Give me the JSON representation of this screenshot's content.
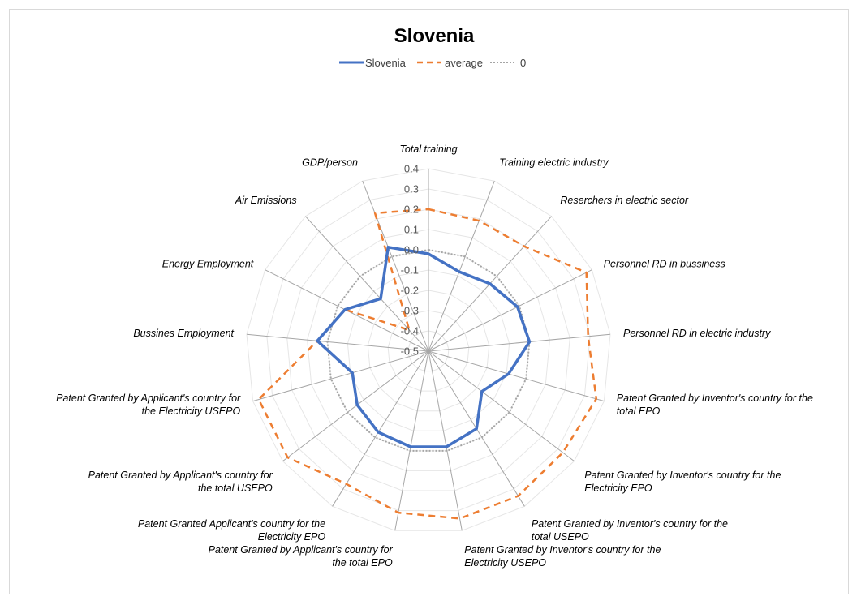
{
  "chart_data": {
    "type": "radar",
    "title": "Slovenia",
    "categories": [
      "Total training",
      "Training electric industry",
      "Reserchers in electric sector",
      "Personnel RD in bussiness",
      "Personnel RD in electric industry",
      "Patent Granted by Inventor's country for the total EPO",
      "Patent Granted by Inventor's country for the Electricity EPO",
      "Patent Granted by Inventor's country for the total USEPO",
      "Patent Granted by Inventor's country for the Electricity USEPO",
      "Patent Granted by Applicant's country for the total EPO",
      "Patent Granted Applicant's country for the Electricity EPO",
      "Patent Granted by Applicant's country for the total USEPO",
      "Patent Granted by Applicant's country for the Electricity USEPO",
      "Bussines Employment",
      "Energy Employment",
      "Air Emissions",
      "GDP/person"
    ],
    "series": [
      {
        "name": "Slovenia",
        "color": "#4472c4",
        "style": "solid",
        "values": [
          -0.02,
          -0.08,
          -0.05,
          -0.01,
          0.0,
          -0.09,
          -0.17,
          -0.05,
          -0.02,
          -0.02,
          -0.03,
          -0.06,
          -0.11,
          0.05,
          -0.04,
          -0.15,
          0.05
        ]
      },
      {
        "name": "average",
        "color": "#ed7d31",
        "style": "dashed",
        "values": [
          0.2,
          0.19,
          0.2,
          0.37,
          0.29,
          0.36,
          0.33,
          0.34,
          0.34,
          0.31,
          0.27,
          0.37,
          0.37,
          0.05,
          -0.04,
          -0.36,
          0.23
        ]
      },
      {
        "name": "0",
        "color": "#a5a5a5",
        "style": "dotted",
        "values": [
          0,
          0,
          0,
          0,
          0,
          0,
          0,
          0,
          0,
          0,
          0,
          0,
          0,
          0,
          0,
          0,
          0
        ]
      }
    ],
    "rlim": [
      -0.5,
      0.4
    ],
    "ticks": [
      0.4,
      0.3,
      0.2,
      0.1,
      0.0,
      -0.1,
      -0.2,
      -0.3,
      -0.4,
      -0.5
    ],
    "tick_labels": [
      "0.4",
      "0.3",
      "0.2",
      "0.1",
      "0.0",
      "-0.1",
      "-0.2",
      "-0.3",
      "-0.4",
      "-0.5"
    ],
    "legend_position": "top-center"
  }
}
